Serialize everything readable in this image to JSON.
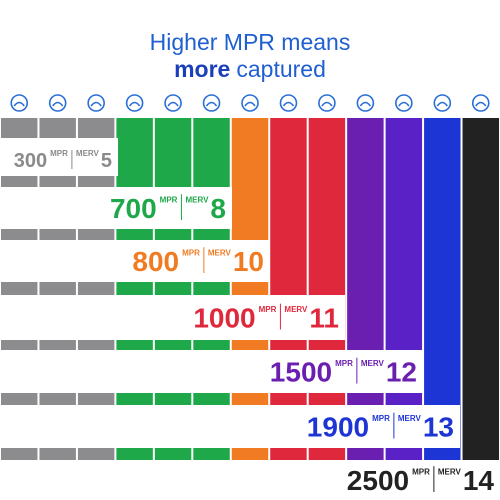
{
  "title": {
    "line1": "Higher MPR means",
    "line2_bold": "more",
    "line2_rest": "captured"
  },
  "levels": [
    {
      "mpr": "300",
      "mpr_unit": "MPR",
      "merv_unit": "MERV",
      "merv": "5"
    },
    {
      "mpr": "700",
      "mpr_unit": "MPR",
      "merv_unit": "MERV",
      "merv": "8"
    },
    {
      "mpr": "800",
      "mpr_unit": "MPR",
      "merv_unit": "MERV",
      "merv": "10"
    },
    {
      "mpr": "1000",
      "mpr_unit": "MPR",
      "merv_unit": "MERV",
      "merv": "11"
    },
    {
      "mpr": "1500",
      "mpr_unit": "MPR",
      "merv_unit": "MERV",
      "merv": "12"
    },
    {
      "mpr": "1900",
      "mpr_unit": "MPR",
      "merv_unit": "MERV",
      "merv": "13"
    },
    {
      "mpr": "2500",
      "mpr_unit": "MPR",
      "merv_unit": "MERV",
      "merv": "14"
    }
  ]
}
